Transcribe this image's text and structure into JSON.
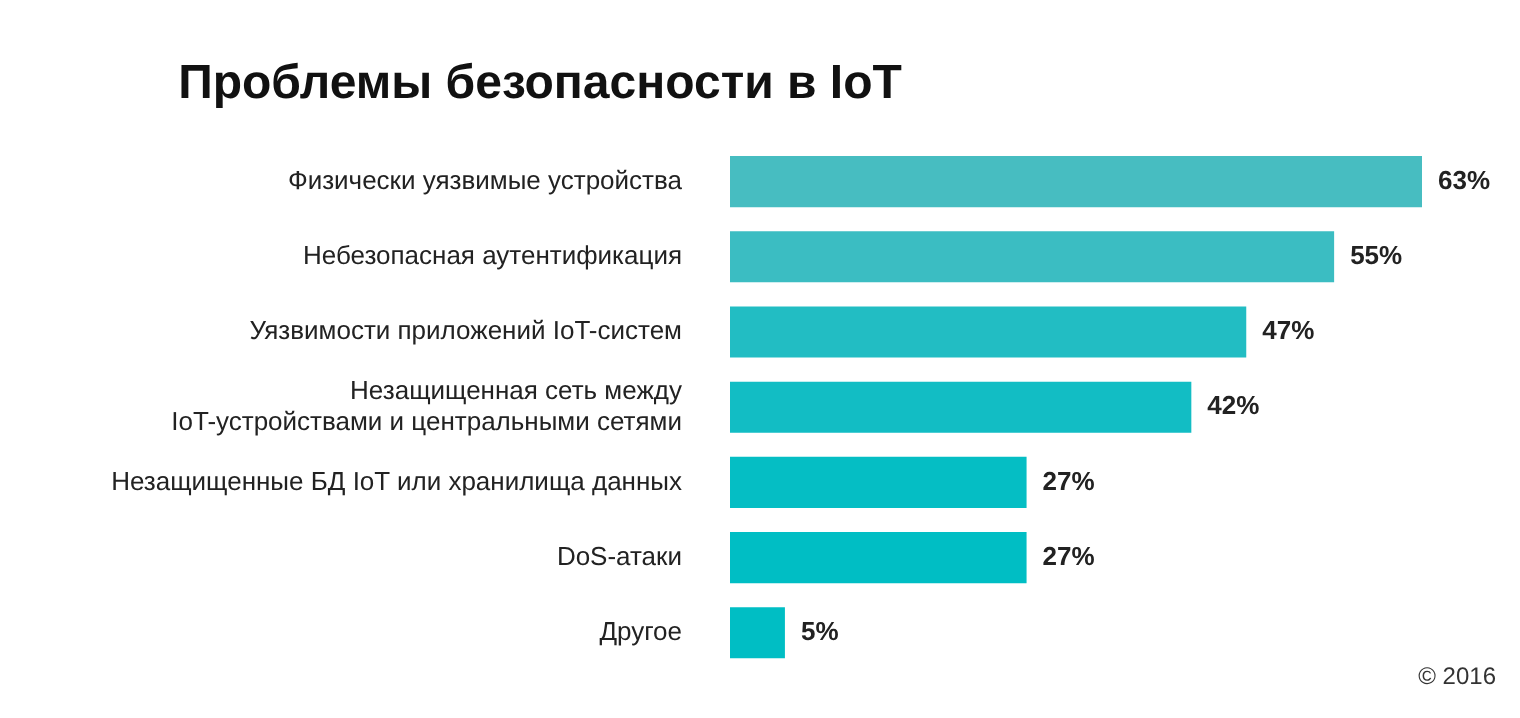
{
  "chart_data": {
    "type": "bar",
    "orientation": "horizontal",
    "title": "Проблемы безопасности в IoT",
    "categories": [
      "Физически уязвимые устройства",
      "Небезопасная аутентификация",
      "Уязвимости приложений IoT-систем",
      "Незащищенная сеть между\nIoT-устройствами и центральными сетями",
      "Незащищенные БД IoT или хранилища данных",
      "DoS-атаки",
      "Другое"
    ],
    "values": [
      63,
      55,
      47,
      42,
      27,
      27,
      5
    ],
    "colors": [
      "#47bdc1",
      "#3bbdc2",
      "#22bdc3",
      "#12bdc4",
      "#05bec4",
      "#00bec4",
      "#00bec4"
    ],
    "value_labels": [
      "63%",
      "55%",
      "47%",
      "42%",
      "27%",
      "27%",
      "5%"
    ],
    "annotations": [
      "© 2016"
    ],
    "legend": false
  }
}
